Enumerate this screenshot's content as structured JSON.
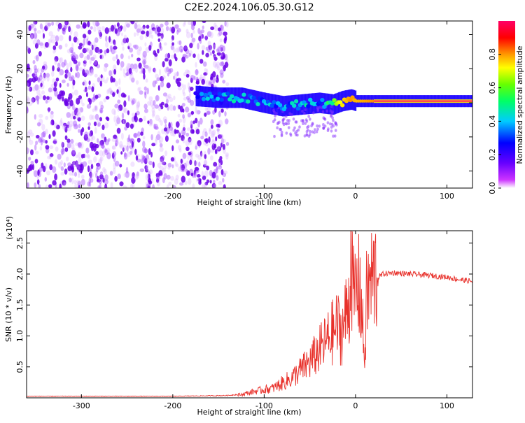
{
  "title": "C2E2.2024.106.05.30.G12",
  "colors": {
    "specBackground": "#ffffff",
    "noise": "#6a00e6",
    "trackCore": "#ff3b5c",
    "snrLine": "#e8312b"
  },
  "chart_data": [
    {
      "type": "heatmap",
      "xlabel": "Height of straight line (km)",
      "ylabel": "Frequency (Hz)",
      "xlim": [
        -360,
        128
      ],
      "ylim": [
        -50,
        48
      ],
      "xticks": [
        -300,
        -200,
        -100,
        0,
        100
      ],
      "xtick_labels": [
        "-300",
        "-200",
        "-100",
        "0",
        "100"
      ],
      "yticks": [
        40,
        20,
        0,
        -20,
        -40
      ],
      "ytick_labels": [
        "40",
        "20",
        "0",
        "-20",
        "-40"
      ],
      "colorbar": {
        "label": "Normalized spectral amplitude",
        "range": [
          0,
          1
        ],
        "ticks": [
          0.0,
          0.2,
          0.4,
          0.6,
          0.8
        ],
        "tick_labels": [
          "0.0",
          "0.2",
          "0.4",
          "0.6",
          "0.8"
        ],
        "colormap": [
          "#ffffff",
          "#cc33ff",
          "#6600ff",
          "#0000ff",
          "#00ccff",
          "#00ff66",
          "#99ff00",
          "#ffff00",
          "#ff9900",
          "#ff0000",
          "#ff0066"
        ]
      },
      "noise_region_x": [
        -360,
        -150
      ],
      "signal_track": {
        "x": [
          -175,
          -150,
          -125,
          -100,
          -80,
          -60,
          -40,
          -25,
          -15,
          -5,
          0,
          20,
          50,
          80,
          100,
          128
        ],
        "frequency": [
          4,
          3,
          3,
          0,
          -2,
          -1,
          0,
          -1,
          1,
          2,
          1,
          1,
          1,
          1,
          1,
          1
        ],
        "amplitude": [
          0.4,
          0.45,
          0.5,
          0.45,
          0.45,
          0.5,
          0.45,
          0.6,
          0.8,
          0.9,
          0.85,
          0.9,
          0.9,
          0.9,
          0.9,
          0.9
        ]
      }
    },
    {
      "type": "line",
      "xlabel": "Height of straight line (km)",
      "ylabel": "SNR (10 * v/v)",
      "scale_label": "(x10⁴)",
      "xlim": [
        -360,
        128
      ],
      "ylim": [
        0,
        2.7
      ],
      "xticks": [
        -300,
        -200,
        -100,
        0,
        100
      ],
      "xtick_labels": [
        "-300",
        "-200",
        "-100",
        "0",
        "100"
      ],
      "yticks": [
        0.5,
        1.0,
        1.5,
        2.0,
        2.5
      ],
      "ytick_labels": [
        "0.5",
        "1.0",
        "1.5",
        "2.0",
        "2.5"
      ],
      "series": [
        {
          "x": [
            -360,
            -300,
            -200,
            -140,
            -125,
            -110,
            -90,
            -70,
            -50,
            -30,
            -20,
            -15,
            -10,
            -6,
            -5,
            -3,
            0,
            5,
            10,
            12,
            15,
            18,
            25,
            30,
            40,
            60,
            80,
            100,
            110,
            128
          ],
          "y": [
            0.02,
            0.02,
            0.02,
            0.03,
            0.05,
            0.1,
            0.15,
            0.3,
            0.55,
            0.9,
            1.1,
            1.0,
            1.3,
            1.6,
            2.7,
            1.5,
            1.6,
            1.7,
            0.55,
            1.5,
            1.7,
            1.8,
            1.95,
            2.0,
            2.02,
            2.0,
            1.98,
            1.95,
            1.92,
            1.88
          ]
        }
      ]
    }
  ]
}
